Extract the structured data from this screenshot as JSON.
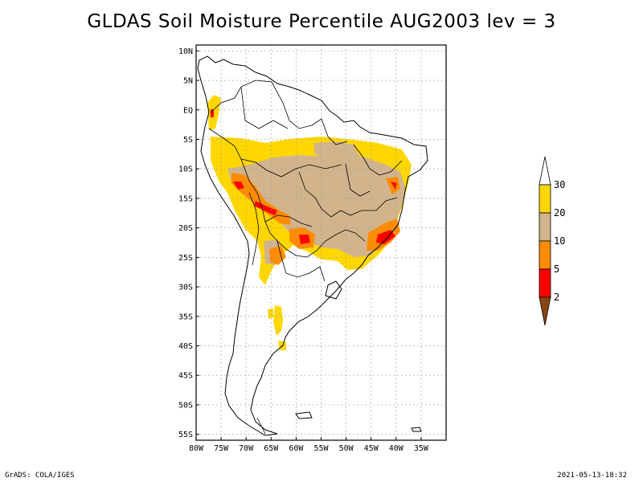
{
  "title": "GLDAS Soil Moisture Percentile AUG2003 lev = 3",
  "footer": {
    "left": "GrADS: COLA/IGES",
    "right": "2021-05-13-18:32"
  },
  "map": {
    "lon_range": [
      -80,
      -30
    ],
    "lat_range": [
      -56,
      11
    ],
    "lat_ticks": [
      {
        "value": 10,
        "label": "10N"
      },
      {
        "value": 5,
        "label": "5N"
      },
      {
        "value": 0,
        "label": "EQ"
      },
      {
        "value": -5,
        "label": "5S"
      },
      {
        "value": -10,
        "label": "10S"
      },
      {
        "value": -15,
        "label": "15S"
      },
      {
        "value": -20,
        "label": "20S"
      },
      {
        "value": -25,
        "label": "25S"
      },
      {
        "value": -30,
        "label": "30S"
      },
      {
        "value": -35,
        "label": "35S"
      },
      {
        "value": -40,
        "label": "40S"
      },
      {
        "value": -45,
        "label": "45S"
      },
      {
        "value": -50,
        "label": "50S"
      },
      {
        "value": -55,
        "label": "55S"
      }
    ],
    "lon_ticks": [
      {
        "value": -80,
        "label": "80W"
      },
      {
        "value": -75,
        "label": "75W"
      },
      {
        "value": -70,
        "label": "70W"
      },
      {
        "value": -65,
        "label": "65W"
      },
      {
        "value": -60,
        "label": "60W"
      },
      {
        "value": -55,
        "label": "55W"
      },
      {
        "value": -50,
        "label": "50W"
      },
      {
        "value": -45,
        "label": "45W"
      },
      {
        "value": -40,
        "label": "40W"
      },
      {
        "value": -35,
        "label": "35W"
      }
    ]
  },
  "legend": {
    "levels": [
      {
        "label": "30",
        "color": "#ffd700"
      },
      {
        "label": "20",
        "color": "#d2b48c"
      },
      {
        "label": "10",
        "color": "#ff8c00"
      },
      {
        "label": "5",
        "color": "#ff0000"
      },
      {
        "label": "2",
        "color": "#8b4513"
      }
    ],
    "top_color": "#ffffff",
    "bottom_color": "#8b4513"
  }
}
